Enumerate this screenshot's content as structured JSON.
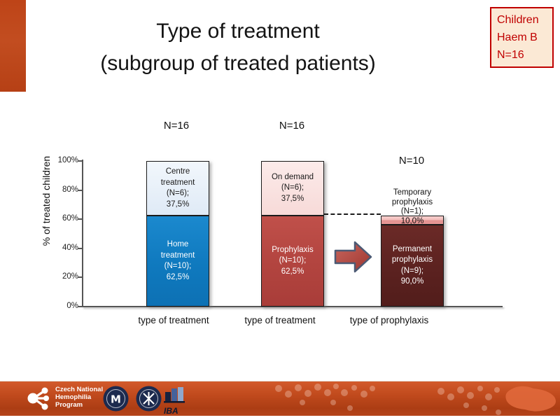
{
  "slide": {
    "title": {
      "line1": "Type of treatment",
      "line2": "(subgroup of treated patients)"
    },
    "info_box": {
      "line1": "Children",
      "line2": "Haem B",
      "line3": "N=16",
      "text_color": "#C00000",
      "background": "#FBE9D5",
      "border_color": "#C00000"
    }
  },
  "chart_data": {
    "type": "bar",
    "stacked": true,
    "title": "",
    "xlabel": "",
    "ylabel": "% of treated children",
    "ylim": [
      0,
      100
    ],
    "grid": false,
    "legend": false,
    "ytick_labels": [
      "100%",
      "80%",
      "60%",
      "40%",
      "20%",
      "0%"
    ],
    "categories": [
      "type of treatment",
      "type of treatment",
      "type of prophylaxis"
    ],
    "bars": [
      {
        "n_label": "N=16",
        "x_label": "type of treatment",
        "segments": [
          {
            "name": "Home treatment",
            "n": 10,
            "value_pct": 62.5,
            "axis_span_pct": 62.5,
            "color": "#1080C6",
            "lines": [
              "Home",
              "treatment",
              "(N=10);",
              "62,5%"
            ]
          },
          {
            "name": "Centre treatment",
            "n": 6,
            "value_pct": 37.5,
            "axis_span_pct": 37.5,
            "color": "#E9F1F9",
            "lines": [
              "Centre",
              "treatment",
              "(N=6);",
              "37,5%"
            ]
          }
        ]
      },
      {
        "n_label": "N=16",
        "x_label": "type of treatment",
        "segments": [
          {
            "name": "Prophylaxis",
            "n": 10,
            "value_pct": 62.5,
            "axis_span_pct": 62.5,
            "color": "#B8443F",
            "lines": [
              "Prophylaxis",
              "(N=10);",
              "62,5%"
            ]
          },
          {
            "name": "On demand",
            "n": 6,
            "value_pct": 37.5,
            "axis_span_pct": 37.5,
            "color": "#FAE3E2",
            "lines": [
              "On demand",
              "(N=6);",
              "37,5%"
            ]
          }
        ]
      },
      {
        "n_label": "N=10",
        "x_label": "type of prophylaxis",
        "segments": [
          {
            "name": "Permanent prophylaxis",
            "n": 9,
            "value_pct": 90.0,
            "axis_span_pct": 56.25,
            "color": "#5E2321",
            "lines": [
              "Permanent",
              "prophylaxis",
              "(N=9);",
              "90,0%"
            ]
          },
          {
            "name": "Temporary prophylaxis",
            "n": 1,
            "value_pct": 10.0,
            "axis_span_pct": 6.25,
            "color": "#EA9997",
            "lines": [
              "Temporary",
              "prophylaxis",
              "(N=1);",
              "10,0%"
            ]
          }
        ]
      }
    ],
    "dashed_guide_pct": 62.5,
    "arrow": {
      "shape": "right-arrow",
      "fill": "#B04A40",
      "outline": "#4C5A74"
    }
  },
  "footer": {
    "cnhp_logo": {
      "line1": "Czech National",
      "line2": "Hemophilia",
      "line3": "Program"
    },
    "iba_label": "IBA",
    "logos": [
      "cnhp-molecule",
      "masaryk-university-seal",
      "medical-faculty-seal",
      "iba-logo"
    ],
    "background": "#BE4518"
  }
}
